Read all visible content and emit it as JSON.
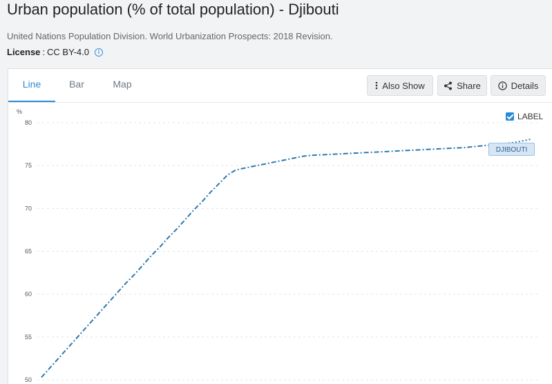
{
  "header": {
    "title": "Urban population (% of total population) - Djibouti",
    "source": "United Nations Population Division. World Urbanization Prospects: 2018 Revision.",
    "license_label": "License",
    "license_separator": ":",
    "license_value": "CC BY-4.0"
  },
  "tabs": [
    {
      "label": "Line",
      "active": true
    },
    {
      "label": "Bar",
      "active": false
    },
    {
      "label": "Map",
      "active": false
    }
  ],
  "toolbar": {
    "also_show": "Also Show",
    "share": "Share",
    "details": "Details"
  },
  "label_toggle": {
    "text": "LABEL",
    "checked": true
  },
  "series_label": "DJIBOUTI",
  "colors": {
    "accent": "#2b8ad6",
    "series": "#2c77ad"
  },
  "chart_data": {
    "type": "line",
    "ylabel": "%",
    "yticks": [
      50,
      55,
      60,
      65,
      70,
      75,
      80
    ],
    "ylim": [
      50,
      80
    ],
    "grid": true,
    "series": [
      {
        "name": "DJIBOUTI",
        "x": [
          0,
          1,
          2,
          3,
          4,
          5,
          6,
          7,
          8,
          9,
          10,
          11,
          12,
          13,
          14,
          15,
          16,
          17,
          18,
          19,
          20,
          21,
          22,
          23,
          24,
          25,
          26,
          27,
          28,
          29,
          30,
          31,
          32,
          33,
          34,
          35,
          36,
          37,
          38,
          39,
          40,
          41,
          42,
          43,
          44,
          45,
          46,
          47,
          48,
          49,
          50,
          51,
          52,
          53,
          54,
          55,
          56,
          57,
          58
        ],
        "values": [
          50.3,
          51.4,
          52.5,
          53.6,
          54.7,
          55.8,
          56.9,
          58.0,
          59.1,
          60.2,
          61.3,
          62.3,
          63.4,
          64.5,
          65.5,
          66.6,
          67.6,
          68.7,
          69.8,
          70.8,
          71.9,
          72.9,
          73.9,
          74.5,
          74.7,
          74.9,
          75.1,
          75.3,
          75.5,
          75.7,
          75.9,
          76.1,
          76.2,
          76.25,
          76.3,
          76.35,
          76.4,
          76.45,
          76.5,
          76.55,
          76.6,
          76.65,
          76.7,
          76.75,
          76.8,
          76.85,
          76.9,
          76.95,
          77.0,
          77.05,
          77.1,
          77.2,
          77.3,
          77.4,
          77.5,
          77.6,
          77.7,
          77.9,
          78.1
        ],
        "line_style_change_index": 54
      }
    ]
  }
}
